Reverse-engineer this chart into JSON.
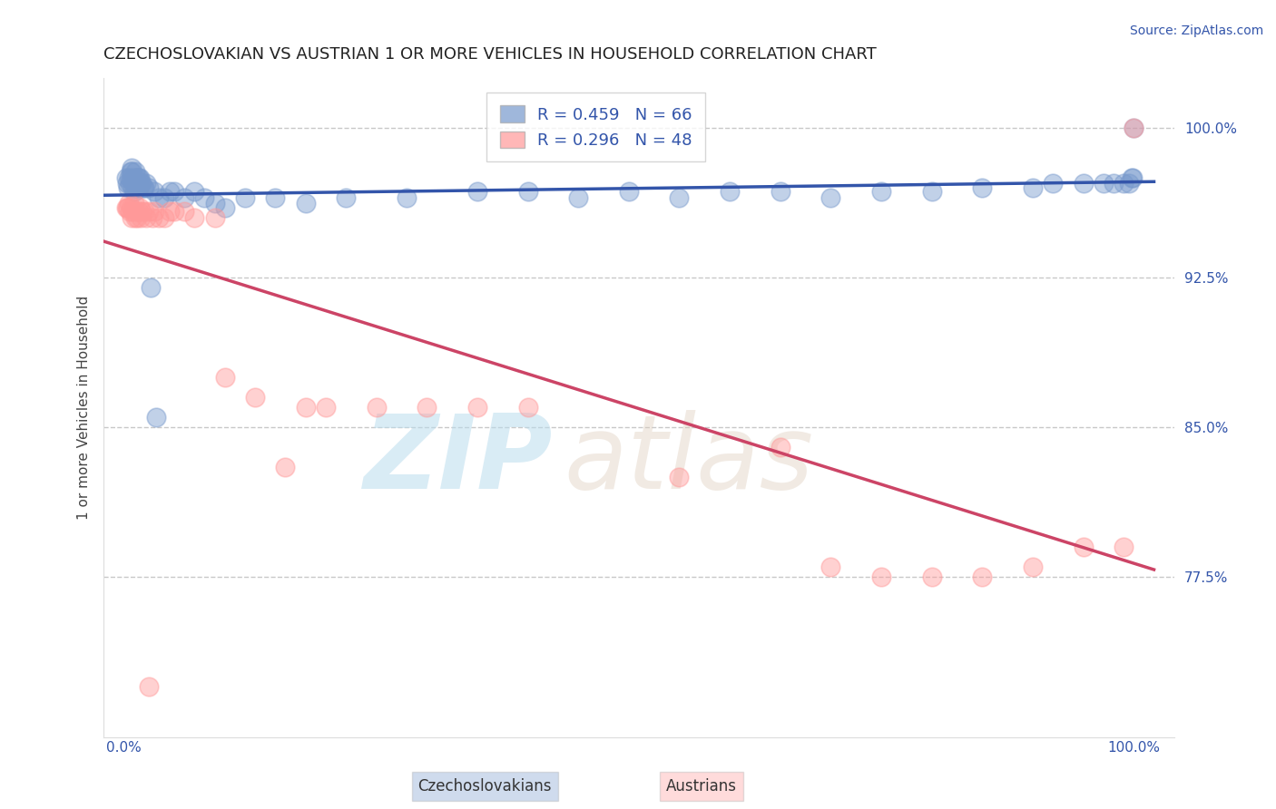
{
  "title": "CZECHOSLOVAKIAN VS AUSTRIAN 1 OR MORE VEHICLES IN HOUSEHOLD CORRELATION CHART",
  "source_text": "Source: ZipAtlas.com",
  "ylabel": "1 or more Vehicles in Household",
  "ylim": [
    0.695,
    1.025
  ],
  "yticks": [
    0.775,
    0.85,
    0.925,
    1.0
  ],
  "ytick_labels": [
    "77.5%",
    "85.0%",
    "92.5%",
    "100.0%"
  ],
  "xtick_labels": [
    "0.0%",
    "100.0%"
  ],
  "xticks": [
    0.0,
    1.0
  ],
  "blue_R": 0.459,
  "blue_N": 66,
  "pink_R": 0.296,
  "pink_N": 48,
  "blue_color": "#7799CC",
  "pink_color": "#FF9999",
  "blue_line_color": "#3355AA",
  "pink_line_color": "#CC4466",
  "legend_blue_label": "R = 0.459   N = 66",
  "legend_pink_label": "R = 0.296   N = 48",
  "blue_scatter_x": [
    0.002,
    0.003,
    0.004,
    0.005,
    0.006,
    0.007,
    0.007,
    0.008,
    0.008,
    0.009,
    0.009,
    0.01,
    0.01,
    0.011,
    0.011,
    0.012,
    0.012,
    0.013,
    0.014,
    0.015,
    0.015,
    0.016,
    0.017,
    0.018,
    0.019,
    0.02,
    0.022,
    0.025,
    0.03,
    0.035,
    0.04,
    0.045,
    0.05,
    0.06,
    0.07,
    0.08,
    0.09,
    0.1,
    0.12,
    0.15,
    0.18,
    0.22,
    0.28,
    0.35,
    0.4,
    0.45,
    0.5,
    0.55,
    0.6,
    0.65,
    0.7,
    0.75,
    0.8,
    0.85,
    0.9,
    0.92,
    0.95,
    0.97,
    0.98,
    0.99,
    0.995,
    0.998,
    0.999,
    1.0,
    0.027,
    0.032
  ],
  "blue_scatter_y": [
    0.975,
    0.972,
    0.97,
    0.975,
    0.972,
    0.978,
    0.975,
    0.98,
    0.978,
    0.97,
    0.973,
    0.968,
    0.975,
    0.97,
    0.978,
    0.975,
    0.972,
    0.97,
    0.975,
    0.97,
    0.975,
    0.975,
    0.972,
    0.972,
    0.97,
    0.97,
    0.972,
    0.97,
    0.968,
    0.965,
    0.965,
    0.968,
    0.968,
    0.965,
    0.968,
    0.965,
    0.962,
    0.96,
    0.965,
    0.965,
    0.962,
    0.965,
    0.965,
    0.968,
    0.968,
    0.965,
    0.968,
    0.965,
    0.968,
    0.968,
    0.965,
    0.968,
    0.968,
    0.97,
    0.97,
    0.972,
    0.972,
    0.972,
    0.972,
    0.972,
    0.972,
    0.975,
    0.975,
    1.0,
    0.92,
    0.855
  ],
  "pink_scatter_x": [
    0.003,
    0.004,
    0.005,
    0.006,
    0.007,
    0.008,
    0.009,
    0.01,
    0.011,
    0.012,
    0.013,
    0.015,
    0.016,
    0.017,
    0.018,
    0.02,
    0.022,
    0.025,
    0.028,
    0.03,
    0.035,
    0.04,
    0.045,
    0.05,
    0.06,
    0.07,
    0.09,
    0.1,
    0.13,
    0.16,
    0.18,
    0.2,
    0.25,
    0.3,
    0.35,
    0.4,
    0.55,
    0.65,
    0.7,
    0.75,
    0.8,
    0.85,
    0.9,
    0.95,
    0.99,
    1.0,
    0.002,
    0.025
  ],
  "pink_scatter_y": [
    0.96,
    0.96,
    0.962,
    0.958,
    0.96,
    0.955,
    0.958,
    0.962,
    0.955,
    0.958,
    0.955,
    0.958,
    0.96,
    0.955,
    0.958,
    0.958,
    0.955,
    0.958,
    0.955,
    0.958,
    0.955,
    0.955,
    0.958,
    0.958,
    0.958,
    0.955,
    0.955,
    0.875,
    0.865,
    0.83,
    0.86,
    0.86,
    0.86,
    0.86,
    0.86,
    0.86,
    0.825,
    0.84,
    0.78,
    0.775,
    0.775,
    0.775,
    0.78,
    0.79,
    0.79,
    1.0,
    0.96,
    0.72
  ],
  "watermark_text": "ZIPatlas",
  "watermark_color": "#AACCEE",
  "background_color": "#FFFFFF",
  "grid_color": "#BBBBBB",
  "title_fontsize": 13,
  "axis_label_fontsize": 11,
  "tick_fontsize": 11,
  "legend_fontsize": 13,
  "source_fontsize": 10
}
